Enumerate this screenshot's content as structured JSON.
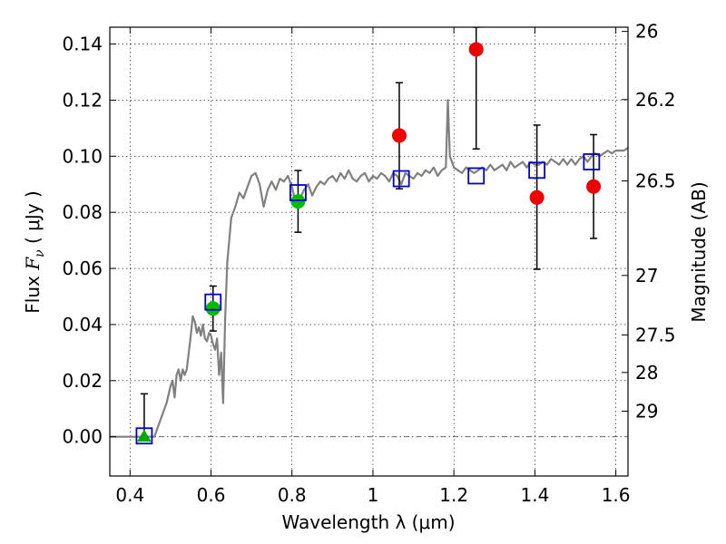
{
  "chart_data": {
    "type": "scatter",
    "xlabel": "Wavelength  λ (μm)",
    "ylabel_left": {
      "prefix": "Flux  ",
      "symbol": "F",
      "subscript": "ν",
      "units": "  ( μJy )"
    },
    "ylabel_right": "Magnitude (AB)",
    "xlim": [
      0.35,
      1.63
    ],
    "ylim": [
      -0.014,
      0.146
    ],
    "grid": true,
    "x_ticks": [
      {
        "value": 0.4,
        "label": "0.4"
      },
      {
        "value": 0.6,
        "label": "0.6"
      },
      {
        "value": 0.8,
        "label": "0.8"
      },
      {
        "value": 1.0,
        "label": "1"
      },
      {
        "value": 1.2,
        "label": "1.2"
      },
      {
        "value": 1.4,
        "label": "1.4"
      },
      {
        "value": 1.6,
        "label": "1.6"
      }
    ],
    "y_ticks": [
      {
        "value": 0.0,
        "label": "0.00"
      },
      {
        "value": 0.02,
        "label": "0.02"
      },
      {
        "value": 0.04,
        "label": "0.04"
      },
      {
        "value": 0.06,
        "label": "0.06"
      },
      {
        "value": 0.08,
        "label": "0.08"
      },
      {
        "value": 0.1,
        "label": "0.10"
      },
      {
        "value": 0.12,
        "label": "0.12"
      },
      {
        "value": 0.14,
        "label": "0.14"
      }
    ],
    "right_ticks": [
      {
        "flux": 0.1445,
        "label": "26"
      },
      {
        "flux": 0.1202,
        "label": "26.2"
      },
      {
        "flux": 0.0912,
        "label": "26.5"
      },
      {
        "flux": 0.0575,
        "label": "27"
      },
      {
        "flux": 0.0363,
        "label": "27.5"
      },
      {
        "flux": 0.0229,
        "label": "28"
      },
      {
        "flux": 0.0091,
        "label": "29"
      }
    ],
    "template_spectrum": {
      "color": "#808080",
      "points": [
        [
          0.35,
          0
        ],
        [
          0.46,
          0
        ],
        [
          0.475,
          0.006
        ],
        [
          0.49,
          0.012
        ],
        [
          0.5,
          0.018
        ],
        [
          0.505,
          0.02
        ],
        [
          0.51,
          0.014
        ],
        [
          0.515,
          0.022
        ],
        [
          0.52,
          0.024
        ],
        [
          0.525,
          0.02
        ],
        [
          0.53,
          0.024
        ],
        [
          0.535,
          0.022
        ],
        [
          0.54,
          0.024
        ],
        [
          0.545,
          0.03
        ],
        [
          0.55,
          0.036
        ],
        [
          0.555,
          0.043
        ],
        [
          0.56,
          0.041
        ],
        [
          0.565,
          0.037
        ],
        [
          0.57,
          0.039
        ],
        [
          0.575,
          0.036
        ],
        [
          0.58,
          0.04
        ],
        [
          0.585,
          0.035
        ],
        [
          0.59,
          0.034
        ],
        [
          0.595,
          0.037
        ],
        [
          0.6,
          0.036
        ],
        [
          0.605,
          0.033
        ],
        [
          0.61,
          0.031
        ],
        [
          0.615,
          0.035
        ],
        [
          0.62,
          0.022
        ],
        [
          0.625,
          0.03
        ],
        [
          0.63,
          0.012
        ],
        [
          0.635,
          0.042
        ],
        [
          0.64,
          0.062
        ],
        [
          0.65,
          0.078
        ],
        [
          0.66,
          0.082
        ],
        [
          0.67,
          0.087
        ],
        [
          0.68,
          0.085
        ],
        [
          0.69,
          0.089
        ],
        [
          0.7,
          0.093
        ],
        [
          0.71,
          0.094
        ],
        [
          0.72,
          0.09
        ],
        [
          0.73,
          0.082
        ],
        [
          0.74,
          0.088
        ],
        [
          0.75,
          0.091
        ],
        [
          0.76,
          0.088
        ],
        [
          0.77,
          0.092
        ],
        [
          0.78,
          0.091
        ],
        [
          0.79,
          0.093
        ],
        [
          0.8,
          0.089
        ],
        [
          0.81,
          0.083
        ],
        [
          0.82,
          0.085
        ],
        [
          0.83,
          0.088
        ],
        [
          0.84,
          0.09
        ],
        [
          0.85,
          0.086
        ],
        [
          0.86,
          0.089
        ],
        [
          0.87,
          0.091
        ],
        [
          0.88,
          0.09
        ],
        [
          0.89,
          0.092
        ],
        [
          0.9,
          0.093
        ],
        [
          0.91,
          0.091
        ],
        [
          0.92,
          0.094
        ],
        [
          0.93,
          0.092
        ],
        [
          0.94,
          0.095
        ],
        [
          0.95,
          0.092
        ],
        [
          0.96,
          0.091
        ],
        [
          0.97,
          0.093
        ],
        [
          0.98,
          0.094
        ],
        [
          0.99,
          0.091
        ],
        [
          1.0,
          0.093
        ],
        [
          1.01,
          0.092
        ],
        [
          1.02,
          0.094
        ],
        [
          1.03,
          0.093
        ],
        [
          1.04,
          0.091
        ],
        [
          1.05,
          0.094
        ],
        [
          1.06,
          0.093
        ],
        [
          1.07,
          0.09
        ],
        [
          1.08,
          0.094
        ],
        [
          1.09,
          0.093
        ],
        [
          1.1,
          0.092
        ],
        [
          1.11,
          0.094
        ],
        [
          1.12,
          0.093
        ],
        [
          1.13,
          0.095
        ],
        [
          1.14,
          0.094
        ],
        [
          1.15,
          0.096
        ],
        [
          1.16,
          0.093
        ],
        [
          1.17,
          0.095
        ],
        [
          1.18,
          0.096
        ],
        [
          1.185,
          0.12
        ],
        [
          1.19,
          0.1
        ],
        [
          1.2,
          0.096
        ],
        [
          1.21,
          0.095
        ],
        [
          1.22,
          0.094
        ],
        [
          1.23,
          0.096
        ],
        [
          1.24,
          0.095
        ],
        [
          1.25,
          0.094
        ],
        [
          1.26,
          0.095
        ],
        [
          1.27,
          0.096
        ],
        [
          1.28,
          0.095
        ],
        [
          1.29,
          0.097
        ],
        [
          1.3,
          0.095
        ],
        [
          1.31,
          0.096
        ],
        [
          1.32,
          0.097
        ],
        [
          1.33,
          0.095
        ],
        [
          1.34,
          0.098
        ],
        [
          1.35,
          0.096
        ],
        [
          1.36,
          0.097
        ],
        [
          1.37,
          0.098
        ],
        [
          1.38,
          0.096
        ],
        [
          1.39,
          0.098
        ],
        [
          1.4,
          0.097
        ],
        [
          1.41,
          0.097
        ],
        [
          1.42,
          0.098
        ],
        [
          1.43,
          0.097
        ],
        [
          1.44,
          0.099
        ],
        [
          1.45,
          0.098
        ],
        [
          1.46,
          0.097
        ],
        [
          1.47,
          0.099
        ],
        [
          1.48,
          0.097
        ],
        [
          1.49,
          0.099
        ],
        [
          1.5,
          0.097
        ],
        [
          1.51,
          0.099
        ],
        [
          1.52,
          0.1
        ],
        [
          1.53,
          0.098
        ],
        [
          1.54,
          0.1
        ],
        [
          1.55,
          0.101
        ],
        [
          1.56,
          0.1
        ],
        [
          1.57,
          0.101
        ],
        [
          1.58,
          0.102
        ],
        [
          1.59,
          0.101
        ],
        [
          1.6,
          0.102
        ],
        [
          1.61,
          0.102
        ],
        [
          1.62,
          0.102
        ],
        [
          1.63,
          0.103
        ]
      ]
    },
    "model_squares": {
      "color": "#0000cc",
      "points": [
        [
          0.435,
          0.0003
        ],
        [
          0.605,
          0.048
        ],
        [
          0.815,
          0.087
        ],
        [
          1.07,
          0.092
        ],
        [
          1.255,
          0.093
        ],
        [
          1.405,
          0.095
        ],
        [
          1.54,
          0.098
        ]
      ]
    },
    "observed": [
      {
        "x": 0.435,
        "y": 0.0,
        "yerr_low": 0.0,
        "yerr_high": 0.0153,
        "marker": "triangle",
        "color": "#00aa00"
      },
      {
        "x": 0.605,
        "y": 0.0457,
        "yerr_low": 0.0377,
        "yerr_high": 0.0537,
        "marker": "circle",
        "color": "#00bb00"
      },
      {
        "x": 0.815,
        "y": 0.0839,
        "yerr_low": 0.0729,
        "yerr_high": 0.0949,
        "marker": "circle",
        "color": "#00bb00"
      },
      {
        "x": 1.065,
        "y": 0.1074,
        "yerr_low": 0.0884,
        "yerr_high": 0.1262,
        "marker": "circle",
        "color": "#ee0000"
      },
      {
        "x": 1.255,
        "y": 0.1381,
        "yerr_low": 0.1026,
        "yerr_high": 0.146,
        "marker": "circle",
        "color": "#ee0000"
      },
      {
        "x": 1.405,
        "y": 0.0853,
        "yerr_low": 0.0597,
        "yerr_high": 0.1111,
        "marker": "circle",
        "color": "#ee0000"
      },
      {
        "x": 1.545,
        "y": 0.0892,
        "yerr_low": 0.0707,
        "yerr_high": 0.1077,
        "marker": "circle",
        "color": "#ee0000"
      }
    ]
  }
}
